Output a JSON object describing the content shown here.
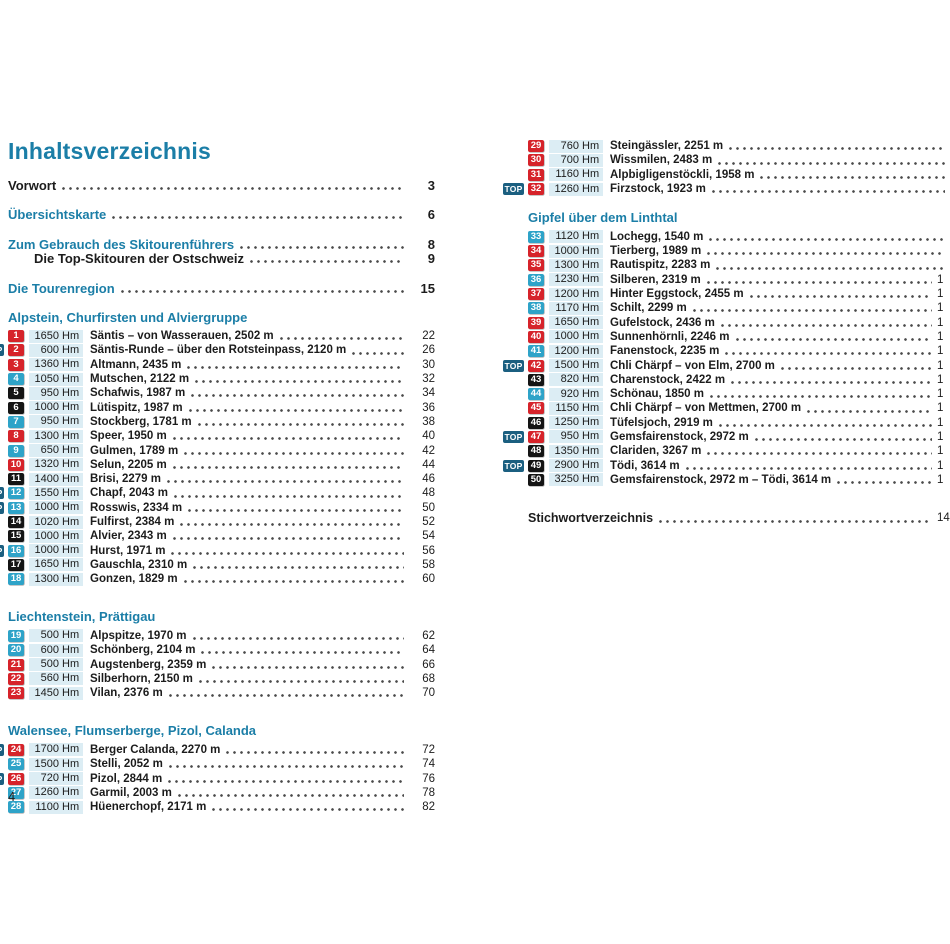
{
  "page": {
    "title": "Inhaltsverzeichnis",
    "page_number": "4"
  },
  "labels": {
    "top_badge": "TOP"
  },
  "units": {
    "hm": "Hm"
  },
  "colors": {
    "teal": "#1b7ea7",
    "red": "#d6232a",
    "blue": "#2ea3c8",
    "black": "#141414",
    "top": "#1b5f80",
    "hmbg": "#dcedf4",
    "ink": "#1c1c1c",
    "dots": "#4a4a4a"
  },
  "front_matter": [
    {
      "label": "Vorwort",
      "page": "3",
      "style": "black",
      "indent": false,
      "gap": false
    },
    {
      "label": "Übersichtskarte",
      "page": "6",
      "style": "teal",
      "indent": false,
      "gap": true
    },
    {
      "label": "Zum Gebrauch des Skitourenführers",
      "page": "8",
      "style": "teal",
      "indent": false,
      "gap": true
    },
    {
      "label": "Die Top-Skitouren der Ostschweiz",
      "page": "9",
      "style": "black",
      "indent": true,
      "gap": false
    },
    {
      "label": "Die Tourenregion",
      "page": "15",
      "style": "teal",
      "indent": false,
      "gap": true
    }
  ],
  "left_column": {
    "sections": [
      {
        "heading": "Alpstein, Churfirsten und Alviergruppe",
        "entries": [
          {
            "num": "1",
            "level": "red",
            "top": false,
            "hm": "1650",
            "title": "Säntis – von Wasserauen, 2502 m",
            "page": "22"
          },
          {
            "num": "2",
            "level": "red",
            "top": true,
            "hm": "600",
            "title": "Säntis-Runde – über den Rotsteinpass, 2120 m",
            "page": "26"
          },
          {
            "num": "3",
            "level": "red",
            "top": false,
            "hm": "1360",
            "title": "Altmann, 2435 m",
            "page": "30"
          },
          {
            "num": "4",
            "level": "blue",
            "top": false,
            "hm": "1050",
            "title": "Mutschen, 2122 m",
            "page": "32"
          },
          {
            "num": "5",
            "level": "black",
            "top": false,
            "hm": "950",
            "title": "Schafwis, 1987 m",
            "page": "34"
          },
          {
            "num": "6",
            "level": "black",
            "top": false,
            "hm": "1000",
            "title": "Lütispitz, 1987 m",
            "page": "36"
          },
          {
            "num": "7",
            "level": "blue",
            "top": false,
            "hm": "950",
            "title": "Stockberg, 1781 m",
            "page": "38"
          },
          {
            "num": "8",
            "level": "red",
            "top": false,
            "hm": "1300",
            "title": "Speer, 1950 m",
            "page": "40"
          },
          {
            "num": "9",
            "level": "blue",
            "top": false,
            "hm": "650",
            "title": "Gulmen, 1789 m",
            "page": "42"
          },
          {
            "num": "10",
            "level": "red",
            "top": false,
            "hm": "1320",
            "title": "Selun, 2205 m",
            "page": "44"
          },
          {
            "num": "11",
            "level": "black",
            "top": false,
            "hm": "1400",
            "title": "Brisi, 2279 m",
            "page": "46"
          },
          {
            "num": "12",
            "level": "blue",
            "top": true,
            "hm": "1550",
            "title": "Chapf, 2043 m",
            "page": "48"
          },
          {
            "num": "13",
            "level": "blue",
            "top": true,
            "hm": "1000",
            "title": "Rosswis, 2334 m",
            "page": "50"
          },
          {
            "num": "14",
            "level": "black",
            "top": false,
            "hm": "1020",
            "title": "Fulfirst, 2384 m",
            "page": "52"
          },
          {
            "num": "15",
            "level": "black",
            "top": false,
            "hm": "1000",
            "title": "Alvier, 2343 m",
            "page": "54"
          },
          {
            "num": "16",
            "level": "blue",
            "top": true,
            "hm": "1000",
            "title": "Hurst, 1971 m",
            "page": "56"
          },
          {
            "num": "17",
            "level": "black",
            "top": false,
            "hm": "1650",
            "title": "Gauschla, 2310 m",
            "page": "58"
          },
          {
            "num": "18",
            "level": "blue",
            "top": false,
            "hm": "1300",
            "title": "Gonzen, 1829 m",
            "page": "60"
          }
        ]
      },
      {
        "heading": "Liechtenstein, Prättigau",
        "entries": [
          {
            "num": "19",
            "level": "blue",
            "top": false,
            "hm": "500",
            "title": "Alpspitze, 1970 m",
            "page": "62"
          },
          {
            "num": "20",
            "level": "blue",
            "top": false,
            "hm": "600",
            "title": "Schönberg, 2104 m",
            "page": "64"
          },
          {
            "num": "21",
            "level": "red",
            "top": false,
            "hm": "500",
            "title": "Augstenberg, 2359 m",
            "page": "66"
          },
          {
            "num": "22",
            "level": "red",
            "top": false,
            "hm": "560",
            "title": "Silberhorn, 2150 m",
            "page": "68"
          },
          {
            "num": "23",
            "level": "red",
            "top": false,
            "hm": "1450",
            "title": "Vilan, 2376 m",
            "page": "70"
          }
        ]
      },
      {
        "heading": "Walensee, Flumserberge, Pizol, Calanda",
        "entries": [
          {
            "num": "24",
            "level": "red",
            "top": true,
            "hm": "1700",
            "title": "Berger Calanda, 2270 m",
            "page": "72"
          },
          {
            "num": "25",
            "level": "blue",
            "top": false,
            "hm": "1500",
            "title": "Stelli, 2052 m",
            "page": "74"
          },
          {
            "num": "26",
            "level": "red",
            "top": true,
            "hm": "720",
            "title": "Pizol, 2844 m",
            "page": "76"
          },
          {
            "num": "27",
            "level": "blue",
            "top": false,
            "hm": "1260",
            "title": "Garmil, 2003 m",
            "page": "78"
          },
          {
            "num": "28",
            "level": "blue",
            "top": false,
            "hm": "1100",
            "title": "Hüenerchopf, 2171 m",
            "page": "82"
          }
        ]
      }
    ]
  },
  "right_column": {
    "sections": [
      {
        "heading": null,
        "entries": [
          {
            "num": "29",
            "level": "red",
            "top": false,
            "hm": "760",
            "title": "Steingässler, 2251 m",
            "page": ""
          },
          {
            "num": "30",
            "level": "red",
            "top": false,
            "hm": "700",
            "title": "Wissmilen, 2483 m",
            "page": ""
          },
          {
            "num": "31",
            "level": "red",
            "top": false,
            "hm": "1160",
            "title": "Alpbigligenstöckli, 1958 m",
            "page": ""
          },
          {
            "num": "32",
            "level": "red",
            "top": true,
            "hm": "1260",
            "title": "Firzstock, 1923 m",
            "page": ""
          }
        ]
      },
      {
        "heading": "Gipfel über dem Linthtal",
        "entries": [
          {
            "num": "33",
            "level": "blue",
            "top": false,
            "hm": "1120",
            "title": "Lochegg, 1540 m",
            "page": ""
          },
          {
            "num": "34",
            "level": "red",
            "top": false,
            "hm": "1000",
            "title": "Tierberg, 1989 m",
            "page": ""
          },
          {
            "num": "35",
            "level": "red",
            "top": false,
            "hm": "1300",
            "title": "Rautispitz, 2283 m",
            "page": ""
          },
          {
            "num": "36",
            "level": "blue",
            "top": false,
            "hm": "1230",
            "title": "Silberen, 2319 m",
            "page": "1"
          },
          {
            "num": "37",
            "level": "red",
            "top": false,
            "hm": "1200",
            "title": "Hinter Eggstock, 2455 m",
            "page": "1"
          },
          {
            "num": "38",
            "level": "blue",
            "top": false,
            "hm": "1170",
            "title": "Schilt, 2299 m",
            "page": "1"
          },
          {
            "num": "39",
            "level": "red",
            "top": false,
            "hm": "1650",
            "title": "Gufelstock, 2436 m",
            "page": "1"
          },
          {
            "num": "40",
            "level": "red",
            "top": false,
            "hm": "1000",
            "title": "Sunnenhörnli, 2246 m",
            "page": "1"
          },
          {
            "num": "41",
            "level": "blue",
            "top": false,
            "hm": "1200",
            "title": "Fanenstock, 2235 m",
            "page": "1"
          },
          {
            "num": "42",
            "level": "red",
            "top": true,
            "hm": "1500",
            "title": "Chli Chärpf – von Elm, 2700 m",
            "page": "1"
          },
          {
            "num": "43",
            "level": "black",
            "top": false,
            "hm": "820",
            "title": "Charenstock, 2422 m",
            "page": "1"
          },
          {
            "num": "44",
            "level": "blue",
            "top": false,
            "hm": "920",
            "title": "Schönau, 1850 m",
            "page": "1"
          },
          {
            "num": "45",
            "level": "red",
            "top": false,
            "hm": "1150",
            "title": "Chli Chärpf – von Mettmen, 2700 m",
            "page": "1"
          },
          {
            "num": "46",
            "level": "black",
            "top": false,
            "hm": "1250",
            "title": "Tüfelsjoch, 2919 m",
            "page": "1"
          },
          {
            "num": "47",
            "level": "red",
            "top": true,
            "hm": "950",
            "title": "Gemsfairenstock, 2972 m",
            "page": "1"
          },
          {
            "num": "48",
            "level": "black",
            "top": false,
            "hm": "1350",
            "title": "Clariden, 3267 m",
            "page": "1"
          },
          {
            "num": "49",
            "level": "black",
            "top": true,
            "hm": "2900",
            "title": "Tödi, 3614 m",
            "page": "1"
          },
          {
            "num": "50",
            "level": "black",
            "top": false,
            "hm": "3250",
            "title": "Gemsfairenstock, 2972 m – Tödi, 3614 m",
            "page": "1"
          }
        ]
      }
    ],
    "index_label": "Stichwortverzeichnis",
    "index_page_fragment": "14"
  }
}
